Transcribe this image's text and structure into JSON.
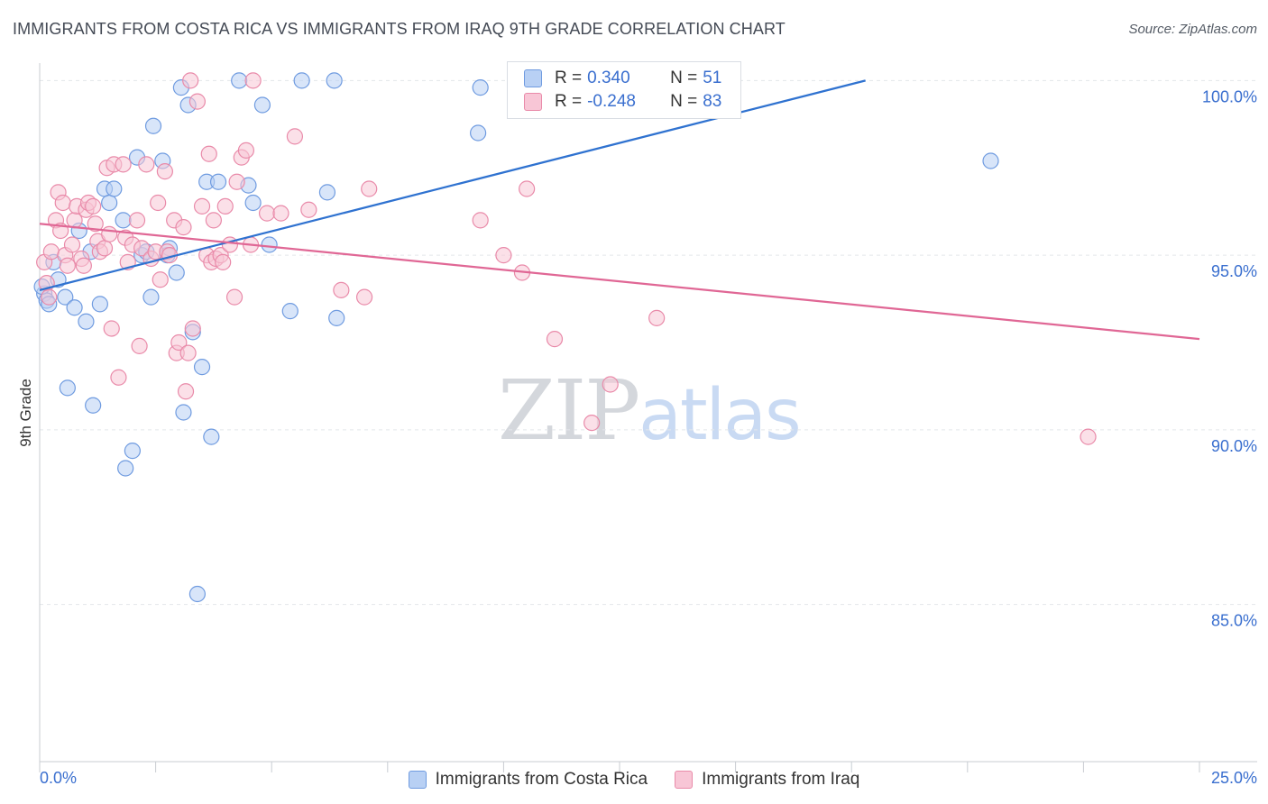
{
  "title": "IMMIGRANTS FROM COSTA RICA VS IMMIGRANTS FROM IRAQ 9TH GRADE CORRELATION CHART",
  "source": "Source: ZipAtlas.com",
  "watermark": {
    "zip": "ZIP",
    "atlas": "atlas"
  },
  "legend": {
    "r_label": "R =",
    "n_label": "N =",
    "rows": [
      {
        "name": "Immigrants from Costa Rica",
        "r": "0.340",
        "n": "51"
      },
      {
        "name": "Immigrants from Iraq",
        "r": "-0.248",
        "n": "83"
      }
    ]
  },
  "colors": {
    "blue_fill": "#b8d0f4",
    "blue_stroke": "#6f9be0",
    "blue_line": "#2f72d0",
    "pink_fill": "#f8c6d6",
    "pink_stroke": "#e98aa9",
    "pink_line": "#e06795",
    "grid": "#e3e6ea",
    "axis_label": "#3a6fcf"
  },
  "chart_data": {
    "type": "scatter",
    "title": "IMMIGRANTS FROM COSTA RICA VS IMMIGRANTS FROM IRAQ 9TH GRADE CORRELATION CHART",
    "ylabel": "9th Grade",
    "xlabel": "",
    "xlim": [
      0,
      25
    ],
    "ylim": [
      80.5,
      100.5
    ],
    "x_tick_labels": [
      "0.0%",
      "25.0%"
    ],
    "y_ticks": [
      85,
      90,
      95,
      100
    ],
    "y_tick_labels": [
      "85.0%",
      "90.0%",
      "95.0%",
      "100.0%"
    ],
    "series": [
      {
        "name": "Immigrants from Costa Rica",
        "color": "blue",
        "trend": {
          "x": [
            0,
            17.8
          ],
          "y": [
            94.0,
            100.0
          ]
        },
        "points": [
          [
            0.1,
            93.9
          ],
          [
            0.15,
            93.7
          ],
          [
            0.2,
            93.6
          ],
          [
            0.3,
            94.8
          ],
          [
            0.4,
            94.3
          ],
          [
            0.55,
            93.8
          ],
          [
            0.6,
            91.2
          ],
          [
            0.75,
            93.5
          ],
          [
            0.85,
            95.7
          ],
          [
            1.0,
            93.1
          ],
          [
            1.1,
            95.1
          ],
          [
            1.15,
            90.7
          ],
          [
            1.3,
            93.6
          ],
          [
            1.4,
            96.9
          ],
          [
            1.5,
            96.5
          ],
          [
            1.6,
            96.9
          ],
          [
            1.8,
            96.0
          ],
          [
            1.85,
            88.9
          ],
          [
            2.0,
            89.4
          ],
          [
            2.1,
            97.8
          ],
          [
            2.2,
            95.0
          ],
          [
            2.3,
            95.1
          ],
          [
            2.4,
            93.8
          ],
          [
            2.45,
            98.7
          ],
          [
            2.65,
            97.7
          ],
          [
            2.75,
            95.0
          ],
          [
            2.8,
            95.2
          ],
          [
            2.95,
            94.5
          ],
          [
            3.05,
            99.8
          ],
          [
            3.1,
            90.5
          ],
          [
            3.2,
            99.3
          ],
          [
            3.3,
            92.8
          ],
          [
            3.4,
            85.3
          ],
          [
            3.5,
            91.8
          ],
          [
            3.6,
            97.1
          ],
          [
            3.7,
            89.8
          ],
          [
            3.85,
            97.1
          ],
          [
            4.3,
            100.0
          ],
          [
            4.5,
            97.0
          ],
          [
            4.6,
            96.5
          ],
          [
            4.8,
            99.3
          ],
          [
            4.95,
            95.3
          ],
          [
            5.4,
            93.4
          ],
          [
            5.65,
            100.0
          ],
          [
            6.2,
            96.8
          ],
          [
            6.35,
            100.0
          ],
          [
            6.4,
            93.2
          ],
          [
            9.45,
            98.5
          ],
          [
            9.5,
            99.8
          ],
          [
            20.5,
            97.7
          ],
          [
            0.05,
            94.1
          ]
        ]
      },
      {
        "name": "Immigrants from Iraq",
        "color": "pink",
        "trend": {
          "x": [
            0,
            25
          ],
          "y": [
            95.9,
            92.6
          ]
        },
        "points": [
          [
            0.1,
            94.8
          ],
          [
            0.15,
            94.2
          ],
          [
            0.2,
            93.8
          ],
          [
            0.25,
            95.1
          ],
          [
            0.35,
            96.0
          ],
          [
            0.4,
            96.8
          ],
          [
            0.45,
            95.7
          ],
          [
            0.5,
            96.5
          ],
          [
            0.55,
            95.0
          ],
          [
            0.6,
            94.7
          ],
          [
            0.7,
            95.3
          ],
          [
            0.75,
            96.0
          ],
          [
            0.8,
            96.4
          ],
          [
            0.9,
            94.9
          ],
          [
            0.95,
            94.7
          ],
          [
            1.0,
            96.3
          ],
          [
            1.05,
            96.5
          ],
          [
            1.15,
            96.4
          ],
          [
            1.2,
            95.9
          ],
          [
            1.25,
            95.4
          ],
          [
            1.3,
            95.1
          ],
          [
            1.4,
            95.2
          ],
          [
            1.45,
            97.5
          ],
          [
            1.5,
            95.6
          ],
          [
            1.55,
            92.9
          ],
          [
            1.6,
            97.6
          ],
          [
            1.7,
            91.5
          ],
          [
            1.8,
            97.6
          ],
          [
            1.85,
            95.5
          ],
          [
            1.9,
            94.8
          ],
          [
            2.0,
            95.3
          ],
          [
            2.1,
            96.0
          ],
          [
            2.15,
            92.4
          ],
          [
            2.2,
            95.2
          ],
          [
            2.3,
            97.6
          ],
          [
            2.4,
            94.9
          ],
          [
            2.5,
            95.1
          ],
          [
            2.55,
            96.5
          ],
          [
            2.6,
            94.3
          ],
          [
            2.7,
            97.4
          ],
          [
            2.75,
            95.1
          ],
          [
            2.8,
            95.0
          ],
          [
            2.9,
            96.0
          ],
          [
            2.95,
            92.2
          ],
          [
            3.0,
            92.5
          ],
          [
            3.1,
            95.8
          ],
          [
            3.15,
            91.1
          ],
          [
            3.2,
            92.2
          ],
          [
            3.25,
            100.0
          ],
          [
            3.3,
            92.9
          ],
          [
            3.4,
            99.4
          ],
          [
            3.5,
            96.4
          ],
          [
            3.6,
            95.0
          ],
          [
            3.65,
            97.9
          ],
          [
            3.7,
            94.8
          ],
          [
            3.75,
            96.0
          ],
          [
            3.8,
            94.9
          ],
          [
            3.9,
            95.0
          ],
          [
            3.95,
            94.8
          ],
          [
            4.0,
            96.4
          ],
          [
            4.1,
            95.3
          ],
          [
            4.2,
            93.8
          ],
          [
            4.25,
            97.1
          ],
          [
            4.35,
            97.8
          ],
          [
            4.45,
            98.0
          ],
          [
            4.55,
            95.3
          ],
          [
            4.6,
            100.0
          ],
          [
            4.9,
            96.2
          ],
          [
            5.2,
            96.2
          ],
          [
            5.5,
            98.4
          ],
          [
            5.8,
            96.3
          ],
          [
            6.5,
            94.0
          ],
          [
            7.0,
            93.8
          ],
          [
            7.1,
            96.9
          ],
          [
            9.5,
            96.0
          ],
          [
            10.0,
            95.0
          ],
          [
            10.4,
            94.5
          ],
          [
            10.5,
            96.9
          ],
          [
            11.1,
            92.6
          ],
          [
            11.9,
            90.2
          ],
          [
            12.3,
            91.3
          ],
          [
            13.3,
            93.2
          ],
          [
            22.6,
            89.8
          ]
        ]
      }
    ]
  }
}
